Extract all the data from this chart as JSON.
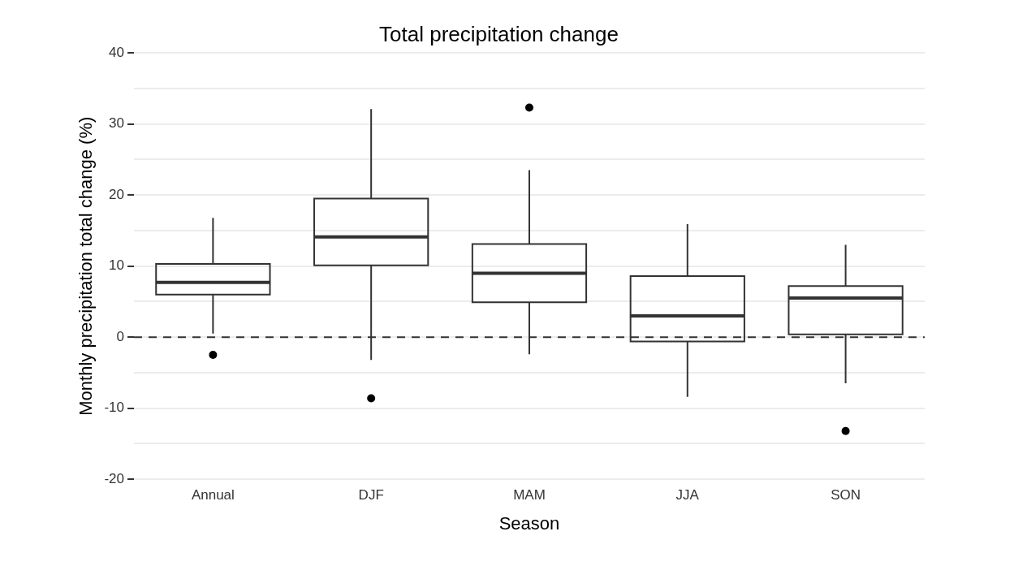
{
  "chart_data": {
    "type": "box",
    "title": "Total precipitation change",
    "xlabel": "Season",
    "ylabel": "Monthly precipitation total change (%)",
    "categories": [
      "Annual",
      "DJF",
      "MAM",
      "JJA",
      "SON"
    ],
    "boxes": [
      {
        "low": 0.5,
        "q1": 6.0,
        "median": 7.7,
        "q3": 10.3,
        "high": 16.8,
        "outliers": [
          -2.5
        ]
      },
      {
        "low": -3.2,
        "q1": 10.1,
        "median": 14.1,
        "q3": 19.5,
        "high": 32.1,
        "outliers": [
          -8.6
        ]
      },
      {
        "low": -2.4,
        "q1": 4.9,
        "median": 9.0,
        "q3": 13.1,
        "high": 23.5,
        "outliers": [
          32.3
        ]
      },
      {
        "low": -8.4,
        "q1": -0.6,
        "median": 3.0,
        "q3": 8.6,
        "high": 15.9
      },
      {
        "low": -6.5,
        "q1": 0.4,
        "median": 5.5,
        "q3": 7.2,
        "high": 13.0,
        "outliers": [
          -13.2
        ]
      }
    ],
    "color": "#333333",
    "ylim": [
      -20,
      40
    ],
    "yticks": [
      -20,
      {
        "value": -15,
        "label": null
      },
      -10,
      {
        "value": -5,
        "label": null
      },
      0,
      {
        "value": 5,
        "label": null
      },
      10,
      {
        "value": 15,
        "label": null
      },
      20,
      {
        "value": 25,
        "label": null
      },
      30,
      {
        "value": 35,
        "label": null
      },
      40
    ],
    "grid": "y",
    "ref_lines": [
      {
        "axis": "y",
        "value": 0,
        "line_style": "dashed",
        "color": "#333333"
      }
    ]
  }
}
